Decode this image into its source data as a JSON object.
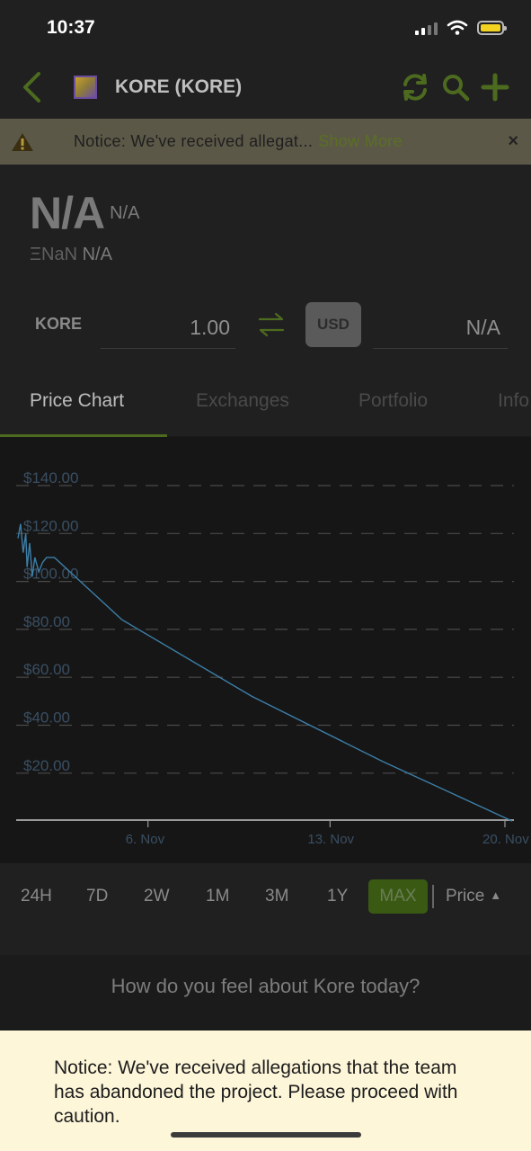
{
  "status_bar": {
    "time": "10:37"
  },
  "nav": {
    "title": "KORE (KORE)"
  },
  "notice": {
    "text": "Notice: We've received allegat...",
    "more": "Show More",
    "close": "×"
  },
  "price": {
    "main": "N/A",
    "main_suffix": "N/A",
    "eth_symbol": "ΞNaN",
    "eth_value": "N/A"
  },
  "converter": {
    "symbol": "KORE",
    "amount": "1.00",
    "currency": "USD",
    "result": "N/A"
  },
  "tabs": [
    {
      "label": "Price Chart",
      "active": true
    },
    {
      "label": "Exchanges",
      "active": false
    },
    {
      "label": "Portfolio",
      "active": false
    },
    {
      "label": "Info",
      "active": false
    }
  ],
  "chart_data": {
    "type": "line",
    "title": "",
    "xlabel": "",
    "ylabel": "",
    "y_ticks": [
      "$140.00",
      "$120.00",
      "$100.00",
      "$80.00",
      "$60.00",
      "$40.00",
      "$20.00"
    ],
    "y_tick_values": [
      140,
      120,
      100,
      80,
      60,
      40,
      20
    ],
    "x_ticks": [
      "6. Nov",
      "13. Nov",
      "20. Nov"
    ],
    "x_tick_days": [
      6,
      13,
      20
    ],
    "ylim": [
      0,
      150
    ],
    "xlim_days": [
      1,
      20
    ],
    "grid": true,
    "series": [
      {
        "line_color": "#3d7fa8",
        "x_days": [
          1.0,
          1.1,
          1.2,
          1.3,
          1.35,
          1.45,
          1.55,
          1.65,
          1.8,
          1.95,
          2.1,
          2.4,
          5.0,
          10.0,
          15.0,
          20.0
        ],
        "y": [
          118,
          124,
          112,
          120,
          106,
          116,
          102,
          110,
          104,
          108,
          110,
          110,
          84,
          52,
          25,
          0
        ]
      }
    ]
  },
  "ranges": {
    "items": [
      "24H",
      "7D",
      "2W",
      "1M",
      "3M",
      "1Y"
    ],
    "active": "MAX",
    "price_toggle": "Price",
    "caret": "▲"
  },
  "feel": {
    "text": "How do you feel about Kore today?"
  },
  "toast": {
    "text": "Notice: We've received allegations that the team has abandoned the project. Please proceed with caution."
  },
  "colors": {
    "accent": "#4d6b1f",
    "banner": "#5c5848",
    "toast_bg": "#fdf6d9",
    "chart_line": "#3d7fa8"
  }
}
